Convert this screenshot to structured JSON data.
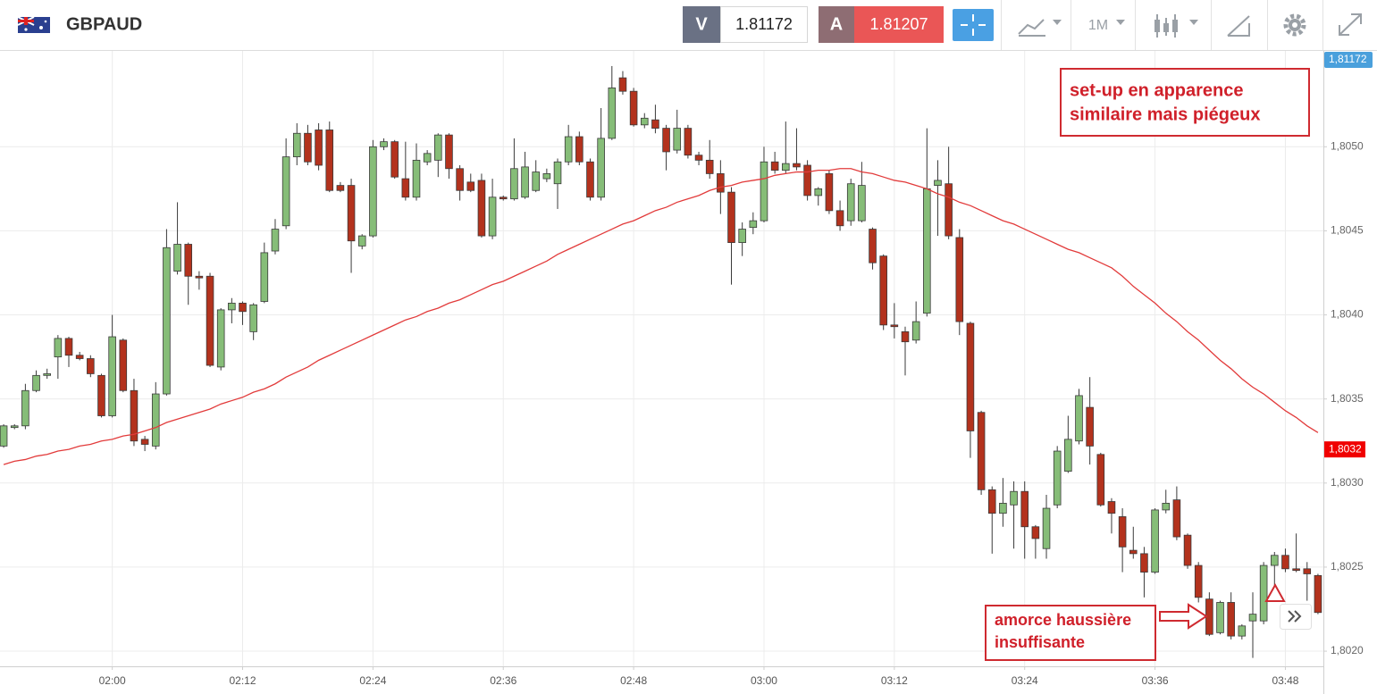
{
  "header": {
    "symbol": "GBPAUD",
    "bid_label": "V",
    "bid": "1.81172",
    "ask_label": "A",
    "ask": "1.81207",
    "timeframe": "1M"
  },
  "chart_data": {
    "type": "candlestick",
    "up_color": "#86bd78",
    "down_color": "#b3321d",
    "outline_color": "#3a3a3a",
    "categories": [
      null,
      null,
      null,
      null,
      null,
      null,
      null,
      null,
      null,
      null,
      "02:00",
      null,
      null,
      null,
      null,
      null,
      null,
      null,
      null,
      null,
      null,
      null,
      "02:12",
      null,
      null,
      null,
      null,
      null,
      null,
      null,
      null,
      null,
      null,
      null,
      "02:24",
      null,
      null,
      null,
      null,
      null,
      null,
      null,
      null,
      null,
      null,
      null,
      "02:36",
      null,
      null,
      null,
      null,
      null,
      null,
      null,
      null,
      null,
      null,
      null,
      "02:48",
      null,
      null,
      null,
      null,
      null,
      null,
      null,
      null,
      null,
      null,
      null,
      "03:00",
      null,
      null,
      null,
      null,
      null,
      null,
      null,
      null,
      null,
      null,
      null,
      "03:12",
      null,
      null,
      null,
      null,
      null,
      null,
      null,
      null,
      null,
      null,
      null,
      "03:24",
      null,
      null,
      null,
      null,
      null,
      null,
      null,
      null,
      null,
      null,
      null,
      "03:36",
      null,
      null,
      null,
      null,
      null,
      null,
      null,
      null,
      null,
      null,
      null,
      "03:48",
      null,
      null,
      null
    ],
    "open": [
      1.80322,
      1.80333,
      1.80334,
      1.80355,
      1.80364,
      1.80375,
      1.80386,
      1.80376,
      1.80374,
      1.80364,
      1.8034,
      1.80385,
      1.80355,
      1.80326,
      1.80322,
      1.80353,
      1.80426,
      1.80442,
      1.80423,
      1.80423,
      1.80369,
      1.80403,
      1.80407,
      1.8039,
      1.80408,
      1.80438,
      1.80453,
      1.80494,
      1.80508,
      1.8051,
      1.8051,
      1.80477,
      1.80477,
      1.80441,
      1.80447,
      1.805,
      1.80503,
      1.80481,
      1.8047,
      1.80491,
      1.80492,
      1.80507,
      1.80487,
      1.80479,
      1.8048,
      1.80447,
      1.8047,
      1.80469,
      1.8047,
      1.80474,
      1.80481,
      1.80478,
      1.80491,
      1.80506,
      1.80491,
      1.8047,
      1.80505,
      1.80541,
      1.80533,
      1.80513,
      1.80516,
      1.80511,
      1.80498,
      1.80511,
      1.80495,
      1.80492,
      1.80484,
      1.80473,
      1.80443,
      1.80452,
      1.80456,
      1.80491,
      1.80486,
      1.8049,
      1.80489,
      1.80471,
      1.80484,
      1.80462,
      1.80456,
      1.80456,
      1.80451,
      1.80435,
      1.80394,
      1.8039,
      1.80385,
      1.80401,
      1.80477,
      1.80478,
      1.80446,
      1.80395,
      1.80342,
      1.80296,
      1.80282,
      1.80287,
      1.80295,
      1.80274,
      1.80261,
      1.80287,
      1.80307,
      1.80325,
      1.80345,
      1.80317,
      1.80289,
      1.8028,
      1.8026,
      1.80258,
      1.80247,
      1.80284,
      1.8029,
      1.80269,
      1.80251,
      1.80231,
      1.80211,
      1.80229,
      1.80209,
      1.80218,
      1.80218,
      1.80251,
      1.80257,
      1.80249,
      1.80249,
      1.80245
    ],
    "high": [
      1.80335,
      1.80335,
      1.80359,
      1.80367,
      1.80368,
      1.80388,
      1.80387,
      1.80378,
      1.80376,
      1.80365,
      1.804,
      1.80386,
      1.80362,
      1.80328,
      1.8036,
      1.80451,
      1.80467,
      1.80443,
      1.80426,
      1.80425,
      1.80404,
      1.8041,
      1.80408,
      1.80407,
      1.80443,
      1.80457,
      1.80505,
      1.80514,
      1.80513,
      1.80514,
      1.80515,
      1.80479,
      1.80481,
      1.80448,
      1.80504,
      1.80505,
      1.80504,
      1.80503,
      1.80502,
      1.80498,
      1.80508,
      1.80508,
      1.80489,
      1.80484,
      1.80484,
      1.80481,
      1.80471,
      1.80505,
      1.80497,
      1.80492,
      1.80487,
      1.80493,
      1.80513,
      1.80509,
      1.80493,
      1.80523,
      1.80548,
      1.80545,
      1.80535,
      1.8052,
      1.80525,
      1.80513,
      1.80522,
      1.80513,
      1.80497,
      1.80504,
      1.80492,
      1.80476,
      1.80455,
      1.80461,
      1.805,
      1.80497,
      1.80515,
      1.80511,
      1.80492,
      1.80476,
      1.80486,
      1.80468,
      1.80481,
      1.80491,
      1.80452,
      1.80436,
      1.80407,
      1.80393,
      1.80408,
      1.80511,
      1.80492,
      1.805,
      1.80451,
      1.80396,
      1.80343,
      1.80298,
      1.80303,
      1.80301,
      1.80301,
      1.80275,
      1.80293,
      1.80322,
      1.8034,
      1.80356,
      1.80363,
      1.80318,
      1.80291,
      1.80285,
      1.80274,
      1.80262,
      1.80285,
      1.80296,
      1.80298,
      1.8027,
      1.80253,
      1.80235,
      1.8023,
      1.80235,
      1.80216,
      1.80235,
      1.80253,
      1.80259,
      1.80261,
      1.8027,
      1.80253,
      1.80246
    ],
    "low": [
      1.80321,
      1.80332,
      1.80332,
      1.80354,
      1.80362,
      1.80362,
      1.80369,
      1.80373,
      1.80363,
      1.80339,
      1.80339,
      1.80354,
      1.80322,
      1.80319,
      1.8032,
      1.80352,
      1.80424,
      1.80406,
      1.80415,
      1.80369,
      1.80367,
      1.80395,
      1.80394,
      1.80385,
      1.80407,
      1.80436,
      1.80451,
      1.80489,
      1.80489,
      1.80486,
      1.80473,
      1.80473,
      1.80425,
      1.80439,
      1.80446,
      1.80498,
      1.80481,
      1.80468,
      1.80468,
      1.80489,
      1.80482,
      1.80481,
      1.80468,
      1.80473,
      1.80446,
      1.80445,
      1.80468,
      1.80468,
      1.80469,
      1.80473,
      1.80479,
      1.80463,
      1.80489,
      1.80489,
      1.80468,
      1.80468,
      1.80504,
      1.80531,
      1.80512,
      1.80511,
      1.80508,
      1.80486,
      1.80496,
      1.80493,
      1.80489,
      1.80481,
      1.8046,
      1.80418,
      1.80435,
      1.80448,
      1.80455,
      1.80484,
      1.80484,
      1.80486,
      1.80468,
      1.80465,
      1.8046,
      1.8045,
      1.80453,
      1.80455,
      1.80427,
      1.80391,
      1.80386,
      1.80364,
      1.80383,
      1.80399,
      1.80447,
      1.80445,
      1.80388,
      1.80315,
      1.80293,
      1.80258,
      1.80274,
      1.80261,
      1.80255,
      1.80255,
      1.80255,
      1.80285,
      1.80306,
      1.80323,
      1.80311,
      1.80286,
      1.8027,
      1.80247,
      1.80255,
      1.80232,
      1.80246,
      1.80282,
      1.80266,
      1.80249,
      1.80229,
      1.80209,
      1.8021,
      1.80207,
      1.80207,
      1.80196,
      1.80216,
      1.80238,
      1.80247,
      1.80247,
      1.8023,
      1.80222
    ],
    "close": [
      1.80334,
      1.80334,
      1.80355,
      1.80364,
      1.80365,
      1.80386,
      1.80376,
      1.80374,
      1.80365,
      1.8034,
      1.80387,
      1.80355,
      1.80325,
      1.80323,
      1.80353,
      1.8044,
      1.80442,
      1.80423,
      1.80422,
      1.8037,
      1.80403,
      1.80407,
      1.80402,
      1.80406,
      1.80437,
      1.80451,
      1.80494,
      1.80508,
      1.80491,
      1.80489,
      1.80474,
      1.80474,
      1.80444,
      1.80447,
      1.805,
      1.80503,
      1.80482,
      1.8047,
      1.80492,
      1.80496,
      1.80507,
      1.80487,
      1.80474,
      1.80474,
      1.80447,
      1.8047,
      1.80469,
      1.80487,
      1.80488,
      1.80485,
      1.80484,
      1.80491,
      1.80506,
      1.80491,
      1.8047,
      1.80505,
      1.80535,
      1.80533,
      1.80513,
      1.80517,
      1.80511,
      1.80497,
      1.80511,
      1.80495,
      1.80492,
      1.80484,
      1.80473,
      1.80443,
      1.80451,
      1.80456,
      1.80491,
      1.80486,
      1.8049,
      1.80488,
      1.80471,
      1.80475,
      1.80462,
      1.80453,
      1.80478,
      1.80477,
      1.80431,
      1.80394,
      1.80393,
      1.80384,
      1.80396,
      1.80475,
      1.8048,
      1.80447,
      1.80396,
      1.80331,
      1.80296,
      1.80282,
      1.80288,
      1.80295,
      1.80274,
      1.80267,
      1.80285,
      1.80319,
      1.80326,
      1.80352,
      1.80322,
      1.80287,
      1.80282,
      1.80262,
      1.80258,
      1.80247,
      1.80284,
      1.80288,
      1.80268,
      1.80251,
      1.80232,
      1.8021,
      1.80229,
      1.80209,
      1.80215,
      1.80222,
      1.80251,
      1.80257,
      1.80249,
      1.80248,
      1.80246,
      1.80223
    ],
    "moving_average": {
      "color": "#e23b3b",
      "values": [
        1.80311,
        1.80313,
        1.80314,
        1.80316,
        1.80317,
        1.80319,
        1.8032,
        1.80322,
        1.80323,
        1.80325,
        1.80326,
        1.80328,
        1.80329,
        1.80331,
        1.80333,
        1.80336,
        1.80338,
        1.8034,
        1.80342,
        1.80344,
        1.80347,
        1.80349,
        1.80351,
        1.80354,
        1.80356,
        1.80359,
        1.80363,
        1.80366,
        1.80369,
        1.80373,
        1.80376,
        1.80379,
        1.80382,
        1.80385,
        1.80388,
        1.80391,
        1.80394,
        1.80397,
        1.80399,
        1.80402,
        1.80404,
        1.80407,
        1.80409,
        1.80412,
        1.80415,
        1.80418,
        1.8042,
        1.80423,
        1.80426,
        1.80429,
        1.80432,
        1.80436,
        1.80439,
        1.80442,
        1.80445,
        1.80448,
        1.80451,
        1.80454,
        1.80456,
        1.80459,
        1.80462,
        1.80464,
        1.80467,
        1.80469,
        1.80471,
        1.80474,
        1.80476,
        1.80477,
        1.80479,
        1.8048,
        1.80481,
        1.80483,
        1.80484,
        1.80485,
        1.80485,
        1.80486,
        1.80486,
        1.80487,
        1.80487,
        1.80485,
        1.80484,
        1.80482,
        1.8048,
        1.80479,
        1.80477,
        1.80475,
        1.80472,
        1.8047,
        1.80467,
        1.80465,
        1.80462,
        1.80459,
        1.80456,
        1.80454,
        1.80451,
        1.80448,
        1.80445,
        1.80442,
        1.80439,
        1.80437,
        1.80434,
        1.80431,
        1.80428,
        1.80423,
        1.80417,
        1.80412,
        1.80407,
        1.80401,
        1.80396,
        1.8039,
        1.80385,
        1.80379,
        1.80373,
        1.80368,
        1.80362,
        1.80357,
        1.80353,
        1.80348,
        1.80343,
        1.80339,
        1.80334,
        1.8033
      ]
    },
    "ylim": [
      1.80191,
      1.80557
    ],
    "yticks": [
      {
        "value": 1.802,
        "label": "1,8020"
      },
      {
        "value": 1.8025,
        "label": "1,8025"
      },
      {
        "value": 1.803,
        "label": "1,8030"
      },
      {
        "value": 1.8035,
        "label": "1,8035"
      },
      {
        "value": 1.804,
        "label": "1,8040"
      },
      {
        "value": 1.8045,
        "label": "1,8045"
      },
      {
        "value": 1.805,
        "label": "1,8050"
      }
    ],
    "grid": true,
    "top_tag": "1,81172",
    "price_tag": {
      "value": 1.8032,
      "label": "1,8032"
    },
    "annotations": [
      {
        "lines": [
          "set-up en apparence",
          "similaire mais piégeux"
        ]
      },
      {
        "lines": [
          "amorce haussière",
          "insuffisante"
        ]
      }
    ]
  }
}
